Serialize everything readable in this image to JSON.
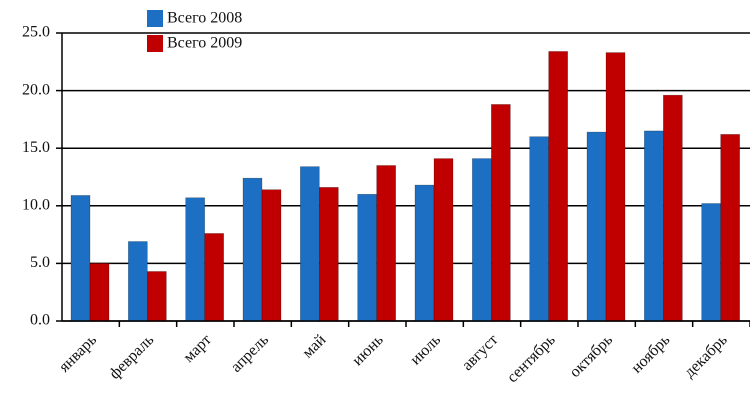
{
  "chart_data": {
    "type": "bar",
    "categories": [
      "январь",
      "февраль",
      "март",
      "апрель",
      "май",
      "июнь",
      "июль",
      "август",
      "сентябрь",
      "октябрь",
      "ноябрь",
      "декабрь"
    ],
    "series": [
      {
        "name": "Всего 2008",
        "color": "#1c6fc2",
        "values": [
          10.9,
          6.9,
          10.7,
          12.4,
          13.4,
          11.0,
          11.8,
          14.1,
          16.0,
          16.4,
          16.5,
          10.2
        ]
      },
      {
        "name": "Всего 2009",
        "color": "#c00000",
        "values": [
          5.0,
          4.3,
          7.6,
          11.4,
          11.6,
          13.5,
          14.1,
          18.8,
          23.4,
          23.3,
          19.6,
          16.2
        ]
      }
    ],
    "ylim": [
      0,
      25
    ],
    "yticks": [
      {
        "value": 0,
        "label": "0.0"
      },
      {
        "value": 5,
        "label": "5.0"
      },
      {
        "value": 10,
        "label": "10.0"
      },
      {
        "value": 15,
        "label": "15.0"
      },
      {
        "value": 20,
        "label": "20.0"
      },
      {
        "value": 25,
        "label": "25.0"
      }
    ],
    "grid": true
  }
}
